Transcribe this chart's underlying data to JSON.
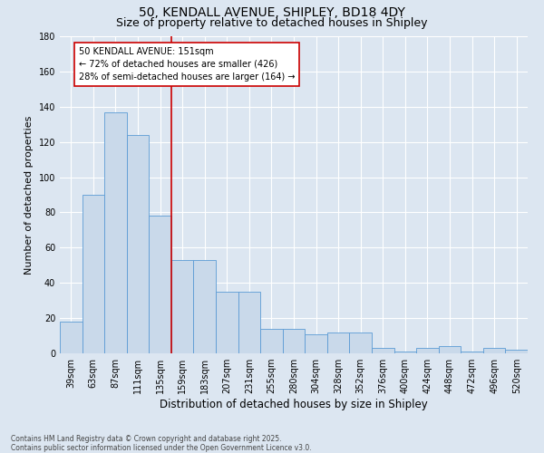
{
  "title_line1": "50, KENDALL AVENUE, SHIPLEY, BD18 4DY",
  "title_line2": "Size of property relative to detached houses in Shipley",
  "xlabel": "Distribution of detached houses by size in Shipley",
  "ylabel": "Number of detached properties",
  "categories": [
    "39sqm",
    "63sqm",
    "87sqm",
    "111sqm",
    "135sqm",
    "159sqm",
    "183sqm",
    "207sqm",
    "231sqm",
    "255sqm",
    "280sqm",
    "304sqm",
    "328sqm",
    "352sqm",
    "376sqm",
    "400sqm",
    "424sqm",
    "448sqm",
    "472sqm",
    "496sqm",
    "520sqm"
  ],
  "values": [
    18,
    90,
    137,
    124,
    78,
    53,
    53,
    35,
    35,
    14,
    14,
    11,
    12,
    12,
    3,
    1,
    3,
    4,
    1,
    3,
    2
  ],
  "bar_color": "#c9d9ea",
  "bar_edge_color": "#5b9bd5",
  "background_color": "#dce6f1",
  "grid_color": "#ffffff",
  "vline_x": 4.5,
  "vline_color": "#cc0000",
  "annotation_text": "50 KENDALL AVENUE: 151sqm\n← 72% of detached houses are smaller (426)\n28% of semi-detached houses are larger (164) →",
  "annotation_box_color": "#ffffff",
  "annotation_box_edge": "#cc0000",
  "ylim": [
    0,
    180
  ],
  "yticks": [
    0,
    20,
    40,
    60,
    80,
    100,
    120,
    140,
    160,
    180
  ],
  "footnote": "Contains HM Land Registry data © Crown copyright and database right 2025.\nContains public sector information licensed under the Open Government Licence v3.0.",
  "title_fontsize": 10,
  "subtitle_fontsize": 9,
  "tick_fontsize": 7,
  "xlabel_fontsize": 8.5,
  "ylabel_fontsize": 8,
  "annotation_fontsize": 7,
  "footnote_fontsize": 5.5
}
